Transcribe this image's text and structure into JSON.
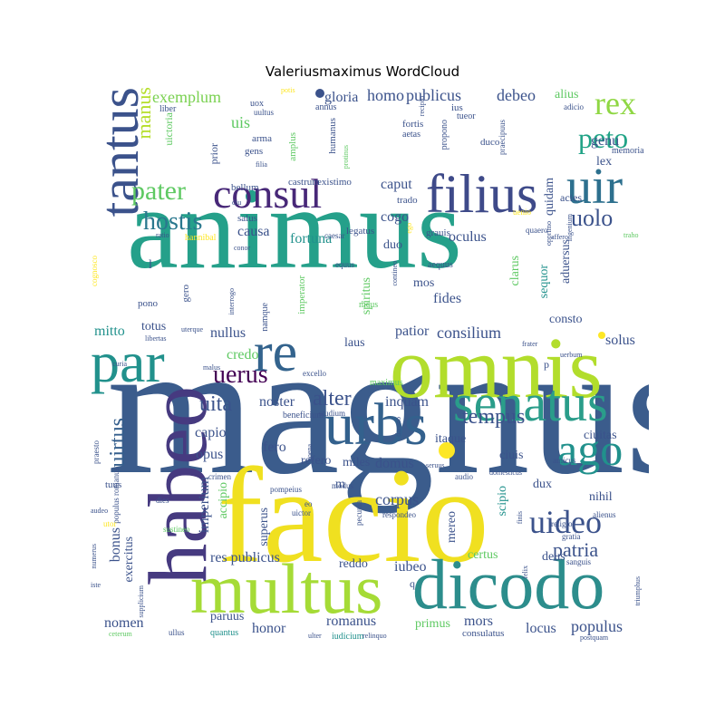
{
  "title": "Valeriusmaximus WordCloud",
  "palette": [
    "#440154",
    "#3b528b",
    "#21918c",
    "#5ec962",
    "#fde725"
  ],
  "words": [
    {
      "text": "magnus",
      "size": 210,
      "color": "#3b5c8c"
    },
    {
      "text": "animus",
      "size": 128,
      "color": "#25a08a"
    },
    {
      "text": "facio",
      "size": 150,
      "color": "#f0e020"
    },
    {
      "text": "omnis",
      "size": 96,
      "color": "#b2dd2c"
    },
    {
      "text": "habeo",
      "size": 92,
      "color": "#463a80"
    },
    {
      "text": "multus",
      "size": 78,
      "color": "#a5db36"
    },
    {
      "text": "dicodo",
      "size": 78,
      "color": "#2c8d8c"
    },
    {
      "text": "urbs",
      "size": 66,
      "color": "#33618d"
    },
    {
      "text": "senatus",
      "size": 58,
      "color": "#2a9d8a"
    },
    {
      "text": "par",
      "size": 64,
      "color": "#21918c"
    },
    {
      "text": "re",
      "size": 62,
      "color": "#33638d"
    },
    {
      "text": "filius",
      "size": 60,
      "color": "#3e4a89"
    },
    {
      "text": "tantus",
      "size": 60,
      "color": "#3b528b"
    },
    {
      "text": "uir",
      "size": 56,
      "color": "#2d708e"
    },
    {
      "text": "consul",
      "size": 46,
      "color": "#482878"
    },
    {
      "text": "ago",
      "size": 50,
      "color": "#21918c"
    },
    {
      "text": "uideo",
      "size": 36,
      "color": "#3b528b"
    },
    {
      "text": "rex",
      "size": 36,
      "color": "#8fd744"
    },
    {
      "text": "peto",
      "size": 32,
      "color": "#20a386"
    },
    {
      "text": "pater",
      "size": 30,
      "color": "#5ec962"
    },
    {
      "text": "hostis",
      "size": 28,
      "color": "#2a788e"
    },
    {
      "text": "uolo",
      "size": 26,
      "color": "#3b528b"
    },
    {
      "text": "uerus",
      "size": 28,
      "color": "#440154"
    },
    {
      "text": "alter",
      "size": 24,
      "color": "#3b528b"
    },
    {
      "text": "uita",
      "size": 24,
      "color": "#3b528b"
    },
    {
      "text": "tempus",
      "size": 24,
      "color": "#3b528b"
    },
    {
      "text": "patria",
      "size": 22,
      "color": "#3b528b"
    },
    {
      "text": "uirtus",
      "size": 24,
      "color": "#355f8d"
    },
    {
      "text": "manus",
      "size": 22,
      "color": "#b5de2b"
    },
    {
      "text": "exemplum",
      "size": 18,
      "color": "#7ad151"
    },
    {
      "text": "uis",
      "size": 18,
      "color": "#5ec962"
    },
    {
      "text": "gloria",
      "size": 16,
      "color": "#3b528b"
    },
    {
      "text": "homo",
      "size": 18,
      "color": "#3b528b"
    },
    {
      "text": "publicus",
      "size": 18,
      "color": "#3b528b"
    },
    {
      "text": "debeo",
      "size": 18,
      "color": "#3b528b"
    },
    {
      "text": "alius",
      "size": 14,
      "color": "#5ec962"
    },
    {
      "text": "genu",
      "size": 16,
      "color": "#3b528b"
    },
    {
      "text": "lex",
      "size": 14,
      "color": "#3b528b"
    },
    {
      "text": "caput",
      "size": 16,
      "color": "#3b528b"
    },
    {
      "text": "cogo",
      "size": 16,
      "color": "#3b528b"
    },
    {
      "text": "causa",
      "size": 16,
      "color": "#3b528b"
    },
    {
      "text": "fortuna",
      "size": 16,
      "color": "#21918c"
    },
    {
      "text": "duo",
      "size": 14,
      "color": "#3b528b"
    },
    {
      "text": "oculus",
      "size": 16,
      "color": "#3b528b"
    },
    {
      "text": "quidam",
      "size": 14,
      "color": "#3b528b"
    },
    {
      "text": "acies",
      "size": 12,
      "color": "#3b528b"
    },
    {
      "text": "aduersus",
      "size": 14,
      "color": "#3b528b"
    },
    {
      "text": "sequor",
      "size": 14,
      "color": "#21918c"
    },
    {
      "text": "mos",
      "size": 14,
      "color": "#3b528b"
    },
    {
      "text": "fides",
      "size": 16,
      "color": "#3b528b"
    },
    {
      "text": "spiritus",
      "size": 14,
      "color": "#5ec962"
    },
    {
      "text": "clarus",
      "size": 14,
      "color": "#5ec962"
    },
    {
      "text": "patior",
      "size": 16,
      "color": "#3b528b"
    },
    {
      "text": "consilium",
      "size": 18,
      "color": "#3b528b"
    },
    {
      "text": "consto",
      "size": 14,
      "color": "#3b528b"
    },
    {
      "text": "solus",
      "size": 16,
      "color": "#3b528b"
    },
    {
      "text": "laus",
      "size": 14,
      "color": "#3b528b"
    },
    {
      "text": "mitto",
      "size": 16,
      "color": "#21918c"
    },
    {
      "text": "totus",
      "size": 14,
      "color": "#3b528b"
    },
    {
      "text": "nullus",
      "size": 16,
      "color": "#3b528b"
    },
    {
      "text": "credo",
      "size": 16,
      "color": "#5ec962"
    },
    {
      "text": "noster",
      "size": 16,
      "color": "#3b528b"
    },
    {
      "text": "inquam",
      "size": 16,
      "color": "#3b528b"
    },
    {
      "text": "capio",
      "size": 16,
      "color": "#3b528b"
    },
    {
      "text": "opus",
      "size": 16,
      "color": "#3b528b"
    },
    {
      "text": "fero",
      "size": 16,
      "color": "#3b528b"
    },
    {
      "text": "refero",
      "size": 14,
      "color": "#3b528b"
    },
    {
      "text": "miles",
      "size": 14,
      "color": "#3b528b"
    },
    {
      "text": "domus",
      "size": 16,
      "color": "#3b528b"
    },
    {
      "text": "itaque",
      "size": 14,
      "color": "#3b528b"
    },
    {
      "text": "ciuis",
      "size": 14,
      "color": "#3b528b"
    },
    {
      "text": "ciuitas",
      "size": 14,
      "color": "#3b528b"
    },
    {
      "text": "corpus",
      "size": 18,
      "color": "#3b528b"
    },
    {
      "text": "dux",
      "size": 14,
      "color": "#3b528b"
    },
    {
      "text": "nihil",
      "size": 14,
      "color": "#3b528b"
    },
    {
      "text": "scipio",
      "size": 14,
      "color": "#21918c"
    },
    {
      "text": "imperium",
      "size": 16,
      "color": "#3b528b"
    },
    {
      "text": "accipio",
      "size": 14,
      "color": "#5ec962"
    },
    {
      "text": "superus",
      "size": 14,
      "color": "#3b528b"
    },
    {
      "text": "mereo",
      "size": 14,
      "color": "#3b528b"
    },
    {
      "text": "bonus",
      "size": 16,
      "color": "#3b528b"
    },
    {
      "text": "exercitus",
      "size": 14,
      "color": "#3b528b"
    },
    {
      "text": "res publicus",
      "size": 16,
      "color": "#3b528b"
    },
    {
      "text": "reddo",
      "size": 14,
      "color": "#3b528b"
    },
    {
      "text": "iubeo",
      "size": 16,
      "color": "#3b528b"
    },
    {
      "text": "certus",
      "size": 14,
      "color": "#5ec962"
    },
    {
      "text": "deus",
      "size": 14,
      "color": "#3b528b"
    },
    {
      "text": "nomen",
      "size": 16,
      "color": "#3b528b"
    },
    {
      "text": "paruus",
      "size": 14,
      "color": "#3b528b"
    },
    {
      "text": "honor",
      "size": 16,
      "color": "#3b528b"
    },
    {
      "text": "romanus",
      "size": 16,
      "color": "#3b528b"
    },
    {
      "text": "primus",
      "size": 14,
      "color": "#5ec962"
    },
    {
      "text": "mors",
      "size": 16,
      "color": "#3b528b"
    },
    {
      "text": "locus",
      "size": 16,
      "color": "#3b528b"
    },
    {
      "text": "populus",
      "size": 18,
      "color": "#3b528b"
    },
    {
      "text": "quantus",
      "size": 10,
      "color": "#21918c"
    },
    {
      "text": "iudicium",
      "size": 10,
      "color": "#21918c"
    },
    {
      "text": "consulatus",
      "size": 11,
      "color": "#3b528b"
    },
    {
      "text": "ius",
      "size": 11,
      "color": "#3b528b"
    },
    {
      "text": "uictoria",
      "size": 12,
      "color": "#5ec962"
    },
    {
      "text": "prior",
      "size": 12,
      "color": "#3b528b"
    },
    {
      "text": "arma",
      "size": 11,
      "color": "#3b528b"
    },
    {
      "text": "gens",
      "size": 11,
      "color": "#3b528b"
    },
    {
      "text": "amplus",
      "size": 11,
      "color": "#5ec962"
    },
    {
      "text": "humanus",
      "size": 11,
      "color": "#3b528b"
    },
    {
      "text": "fortis",
      "size": 11,
      "color": "#3b528b"
    },
    {
      "text": "aetas",
      "size": 10,
      "color": "#3b528b"
    },
    {
      "text": "propono",
      "size": 10,
      "color": "#3b528b"
    },
    {
      "text": "duco",
      "size": 11,
      "color": "#3b528b"
    },
    {
      "text": "memoria",
      "size": 10,
      "color": "#3b528b"
    },
    {
      "text": "bellum",
      "size": 11,
      "color": "#3b528b"
    },
    {
      "text": "castrum",
      "size": 11,
      "color": "#3b528b"
    },
    {
      "text": "existimo",
      "size": 11,
      "color": "#3b528b"
    },
    {
      "text": "trado",
      "size": 11,
      "color": "#3b528b"
    },
    {
      "text": "legatus",
      "size": 11,
      "color": "#3b528b"
    },
    {
      "text": "grauis",
      "size": 11,
      "color": "#3b528b"
    },
    {
      "text": "salus",
      "size": 11,
      "color": "#3b528b"
    },
    {
      "text": "caesar",
      "size": 9,
      "color": "#3b528b"
    },
    {
      "text": "hannibal",
      "size": 10,
      "color": "#fde725"
    },
    {
      "text": "gero",
      "size": 11,
      "color": "#3b528b"
    },
    {
      "text": "pono",
      "size": 11,
      "color": "#3b528b"
    },
    {
      "text": "imperator",
      "size": 11,
      "color": "#5ec962"
    },
    {
      "text": "meus",
      "size": 10,
      "color": "#5ec962"
    },
    {
      "text": "aequus",
      "size": 10,
      "color": "#3b528b"
    },
    {
      "text": "equus",
      "size": 9,
      "color": "#3b528b"
    },
    {
      "text": "namque",
      "size": 10,
      "color": "#3b528b"
    },
    {
      "text": "tuus",
      "size": 11,
      "color": "#3b528b"
    },
    {
      "text": "beneficium",
      "size": 10,
      "color": "#3b528b"
    },
    {
      "text": "studium",
      "size": 9,
      "color": "#3b528b"
    },
    {
      "text": "maximus",
      "size": 10,
      "color": "#5ec962"
    },
    {
      "text": "excello",
      "size": 9,
      "color": "#3b528b"
    },
    {
      "text": "liber",
      "size": 10,
      "color": "#3b528b"
    },
    {
      "text": "uox",
      "size": 10,
      "color": "#3b528b"
    },
    {
      "text": "annus",
      "size": 10,
      "color": "#3b528b"
    },
    {
      "text": "tueor",
      "size": 10,
      "color": "#3b528b"
    },
    {
      "text": "praecipuus",
      "size": 9,
      "color": "#3b528b"
    },
    {
      "text": "adicio",
      "size": 9,
      "color": "#3b528b"
    },
    {
      "text": "uultus",
      "size": 9,
      "color": "#3b528b"
    },
    {
      "text": "potis",
      "size": 8,
      "color": "#fde725"
    },
    {
      "text": "recipio",
      "size": 8,
      "color": "#3b528b"
    },
    {
      "text": "uenio",
      "size": 9,
      "color": "#fde725"
    },
    {
      "text": "quaero",
      "size": 9,
      "color": "#3b528b"
    },
    {
      "text": "affero",
      "size": 8,
      "color": "#3b528b"
    },
    {
      "text": "ingenium",
      "size": 8,
      "color": "#3b528b"
    },
    {
      "text": "praesto",
      "size": 9,
      "color": "#3b528b"
    },
    {
      "text": "populus romanus",
      "size": 9,
      "color": "#3b528b"
    },
    {
      "text": "crimen",
      "size": 9,
      "color": "#3b528b"
    },
    {
      "text": "pompeius",
      "size": 9,
      "color": "#3b528b"
    },
    {
      "text": "pecunia",
      "size": 9,
      "color": "#3b528b"
    },
    {
      "text": "respondeo",
      "size": 9,
      "color": "#3b528b"
    },
    {
      "text": "religio",
      "size": 9,
      "color": "#3b528b"
    },
    {
      "text": "gratia",
      "size": 9,
      "color": "#3b528b"
    },
    {
      "text": "sanguis",
      "size": 9,
      "color": "#3b528b"
    },
    {
      "text": "alienus",
      "size": 9,
      "color": "#3b528b"
    },
    {
      "text": "audio",
      "size": 9,
      "color": "#3b528b"
    },
    {
      "text": "domesticus",
      "size": 8,
      "color": "#3b528b"
    },
    {
      "text": "amicus",
      "size": 9,
      "color": "#3b528b"
    },
    {
      "text": "dies",
      "size": 9,
      "color": "#3b528b"
    },
    {
      "text": "utor",
      "size": 9,
      "color": "#fde725"
    },
    {
      "text": "audeo",
      "size": 8,
      "color": "#3b528b"
    },
    {
      "text": "sustineo",
      "size": 9,
      "color": "#5ec962"
    },
    {
      "text": "uictor",
      "size": 9,
      "color": "#3b528b"
    },
    {
      "text": "modus",
      "size": 9,
      "color": "#3b528b"
    },
    {
      "text": "seruus",
      "size": 8,
      "color": "#3b528b"
    },
    {
      "text": "numerus",
      "size": 8,
      "color": "#3b528b"
    },
    {
      "text": "iste",
      "size": 8,
      "color": "#3b528b"
    },
    {
      "text": "ceterum",
      "size": 8,
      "color": "#5ec962"
    },
    {
      "text": "ullus",
      "size": 9,
      "color": "#3b528b"
    },
    {
      "text": "supplicium",
      "size": 8,
      "color": "#3b528b"
    },
    {
      "text": "ulter",
      "size": 8,
      "color": "#3b528b"
    },
    {
      "text": "relinquo",
      "size": 8,
      "color": "#3b528b"
    },
    {
      "text": "postquam",
      "size": 8,
      "color": "#3b528b"
    },
    {
      "text": "triumphus",
      "size": 8,
      "color": "#3b528b"
    },
    {
      "text": "cognosco",
      "size": 9,
      "color": "#fde725"
    },
    {
      "text": "libertas",
      "size": 8,
      "color": "#3b528b"
    },
    {
      "text": "uterque",
      "size": 8,
      "color": "#3b528b"
    },
    {
      "text": "curia",
      "size": 8,
      "color": "#3b528b"
    },
    {
      "text": "malus",
      "size": 8,
      "color": "#3b528b"
    },
    {
      "text": "frater",
      "size": 8,
      "color": "#3b528b"
    },
    {
      "text": "uerbum",
      "size": 8,
      "color": "#3b528b"
    },
    {
      "text": "opprimo",
      "size": 8,
      "color": "#3b528b"
    },
    {
      "text": "protinus",
      "size": 8,
      "color": "#5ec962"
    },
    {
      "text": "filia",
      "size": 8,
      "color": "#3b528b"
    },
    {
      "text": "traho",
      "size": 8,
      "color": "#5ec962"
    },
    {
      "text": "diu",
      "size": 8,
      "color": "#3b528b"
    },
    {
      "text": "ratio",
      "size": 8,
      "color": "#3b528b"
    },
    {
      "text": "conor",
      "size": 8,
      "color": "#3b528b"
    },
    {
      "text": "interrogo",
      "size": 8,
      "color": "#3b528b"
    },
    {
      "text": "contineo",
      "size": 8,
      "color": "#3b528b"
    },
    {
      "text": "poena",
      "size": 8,
      "color": "#3b528b"
    },
    {
      "text": "damno",
      "size": 8,
      "color": "#3b528b"
    },
    {
      "text": "felix",
      "size": 8,
      "color": "#3b528b"
    },
    {
      "text": "finis",
      "size": 8,
      "color": "#3b528b"
    },
    {
      "text": "eo",
      "size": 9,
      "color": "#3b528b"
    },
    {
      "text": "m",
      "size": 14,
      "color": "#3b528b"
    },
    {
      "text": "p",
      "size": 12,
      "color": "#3b528b"
    },
    {
      "text": "q",
      "size": 12,
      "color": "#3b528b"
    },
    {
      "text": "l",
      "size": 14,
      "color": "#3b528b"
    },
    {
      "text": "ego",
      "size": 8,
      "color": "#fde725"
    }
  ]
}
